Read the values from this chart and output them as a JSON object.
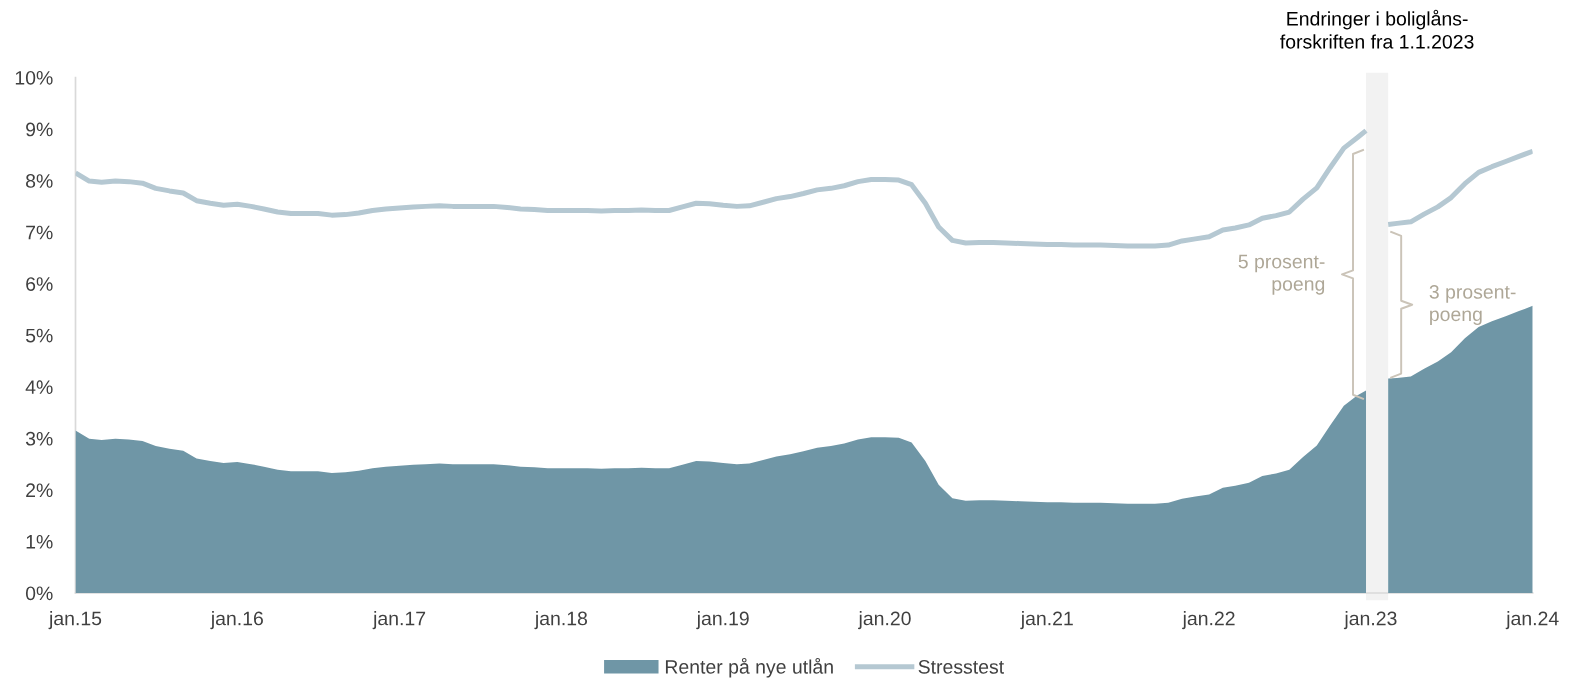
{
  "chart_data": {
    "type": "area",
    "x": [
      "2015-01",
      "2015-02",
      "2015-03",
      "2015-04",
      "2015-05",
      "2015-06",
      "2015-07",
      "2015-08",
      "2015-09",
      "2015-10",
      "2015-11",
      "2015-12",
      "2016-01",
      "2016-02",
      "2016-03",
      "2016-04",
      "2016-05",
      "2016-06",
      "2016-07",
      "2016-08",
      "2016-09",
      "2016-10",
      "2016-11",
      "2016-12",
      "2017-01",
      "2017-02",
      "2017-03",
      "2017-04",
      "2017-05",
      "2017-06",
      "2017-07",
      "2017-08",
      "2017-09",
      "2017-10",
      "2017-11",
      "2017-12",
      "2018-01",
      "2018-02",
      "2018-03",
      "2018-04",
      "2018-05",
      "2018-06",
      "2018-07",
      "2018-08",
      "2018-09",
      "2018-10",
      "2018-11",
      "2018-12",
      "2019-01",
      "2019-02",
      "2019-03",
      "2019-04",
      "2019-05",
      "2019-06",
      "2019-07",
      "2019-08",
      "2019-09",
      "2019-10",
      "2019-11",
      "2019-12",
      "2020-01",
      "2020-02",
      "2020-03",
      "2020-04",
      "2020-05",
      "2020-06",
      "2020-07",
      "2020-08",
      "2020-09",
      "2020-10",
      "2020-11",
      "2020-12",
      "2021-01",
      "2021-02",
      "2021-03",
      "2021-04",
      "2021-05",
      "2021-06",
      "2021-07",
      "2021-08",
      "2021-09",
      "2021-10",
      "2021-11",
      "2021-12",
      "2022-01",
      "2022-02",
      "2022-03",
      "2022-04",
      "2022-05",
      "2022-06",
      "2022-07",
      "2022-08",
      "2022-09",
      "2022-10",
      "2022-11",
      "2022-12",
      "2022-12-21",
      "2023-01",
      "2023-02-09",
      "2023-03",
      "2023-04",
      "2023-05",
      "2023-06",
      "2023-07",
      "2023-08",
      "2023-09",
      "2023-10",
      "2023-11",
      "2023-12",
      "2024-01"
    ],
    "series": [
      {
        "name": "Renter på nye utlån",
        "color": "#6f96a6",
        "values": [
          3.15,
          2.99,
          2.97,
          2.99,
          2.98,
          2.95,
          2.85,
          2.8,
          2.76,
          2.61,
          2.56,
          2.52,
          2.54,
          2.5,
          2.45,
          2.39,
          2.36,
          2.36,
          2.36,
          2.33,
          2.34,
          2.37,
          2.42,
          2.45,
          2.47,
          2.49,
          2.5,
          2.51,
          2.5,
          2.5,
          2.5,
          2.5,
          2.48,
          2.45,
          2.44,
          2.42,
          2.42,
          2.42,
          2.42,
          2.41,
          2.42,
          2.42,
          2.43,
          2.42,
          2.42,
          2.49,
          2.56,
          2.55,
          2.52,
          2.5,
          2.51,
          2.58,
          2.65,
          2.69,
          2.75,
          2.82,
          2.85,
          2.9,
          2.98,
          3.02,
          3.02,
          3.01,
          2.92,
          2.56,
          2.1,
          1.84,
          1.79,
          1.8,
          1.8,
          1.79,
          1.78,
          1.77,
          1.76,
          1.76,
          1.75,
          1.75,
          1.75,
          1.74,
          1.73,
          1.73,
          1.73,
          1.75,
          1.83,
          1.87,
          1.91,
          2.04,
          2.08,
          2.14,
          2.27,
          2.32,
          2.39,
          2.64,
          2.86,
          3.25,
          3.63,
          3.83,
          3.93,
          null,
          4.16,
          4.17,
          4.2,
          4.35,
          4.49,
          4.67,
          4.94,
          5.16,
          5.27,
          5.37,
          5.47,
          5.57
        ]
      },
      {
        "name": "Stresstest",
        "type": "line",
        "color": "#b5c8d2",
        "values": [
          8.15,
          7.99,
          7.97,
          7.99,
          7.98,
          7.95,
          7.85,
          7.8,
          7.76,
          7.61,
          7.56,
          7.52,
          7.54,
          7.5,
          7.45,
          7.39,
          7.36,
          7.36,
          7.36,
          7.33,
          7.34,
          7.37,
          7.42,
          7.45,
          7.47,
          7.49,
          7.5,
          7.51,
          7.5,
          7.5,
          7.5,
          7.5,
          7.48,
          7.45,
          7.44,
          7.42,
          7.42,
          7.42,
          7.42,
          7.41,
          7.42,
          7.42,
          7.43,
          7.42,
          7.42,
          7.49,
          7.56,
          7.55,
          7.52,
          7.5,
          7.51,
          7.58,
          7.65,
          7.69,
          7.75,
          7.82,
          7.85,
          7.9,
          7.98,
          8.02,
          8.02,
          8.01,
          7.92,
          7.56,
          7.1,
          6.84,
          6.79,
          6.8,
          6.8,
          6.79,
          6.78,
          6.77,
          6.76,
          6.76,
          6.75,
          6.75,
          6.75,
          6.74,
          6.73,
          6.73,
          6.73,
          6.75,
          6.83,
          6.87,
          6.91,
          7.04,
          7.08,
          7.14,
          7.27,
          7.32,
          7.39,
          7.64,
          7.86,
          8.25,
          8.63,
          8.83,
          8.97,
          null,
          7.15,
          7.17,
          7.2,
          7.35,
          7.49,
          7.67,
          7.94,
          8.16,
          8.27,
          8.37,
          8.47,
          8.57
        ]
      }
    ],
    "xlim": [
      "2015-01",
      "2024-01"
    ],
    "xticks": [
      {
        "value": "2015-01",
        "label": "jan.15"
      },
      {
        "value": "2016-01",
        "label": "jan.16"
      },
      {
        "value": "2017-01",
        "label": "jan.17"
      },
      {
        "value": "2018-01",
        "label": "jan.18"
      },
      {
        "value": "2019-01",
        "label": "jan.19"
      },
      {
        "value": "2020-01",
        "label": "jan.20"
      },
      {
        "value": "2021-01",
        "label": "jan.21"
      },
      {
        "value": "2022-01",
        "label": "jan.22"
      },
      {
        "value": "2023-01",
        "label": "jan.23"
      },
      {
        "value": "2024-01",
        "label": "jan.24"
      }
    ],
    "ylim": [
      0,
      10
    ],
    "yticks": [
      {
        "value": 0,
        "label": "0%"
      },
      {
        "value": 1,
        "label": "1%"
      },
      {
        "value": 2,
        "label": "2%"
      },
      {
        "value": 3,
        "label": "3%"
      },
      {
        "value": 4,
        "label": "4%"
      },
      {
        "value": 5,
        "label": "5%"
      },
      {
        "value": 6,
        "label": "6%"
      },
      {
        "value": 7,
        "label": "7%"
      },
      {
        "value": 8,
        "label": "8%"
      },
      {
        "value": 9,
        "label": "9%"
      },
      {
        "value": 10,
        "label": "10%"
      }
    ],
    "line_style": "solid",
    "legend": "bottom",
    "bands": [
      {
        "axis": "x",
        "from": "2022-12-21",
        "to": "2023-02-09",
        "label": "Endringer i boliglåns-\nforskriften fra 1.1.2023",
        "color": "#f2f2f2"
      }
    ],
    "annotations": [
      "5 prosent-\npoeng",
      "3 prosent-\npoeng"
    ]
  }
}
